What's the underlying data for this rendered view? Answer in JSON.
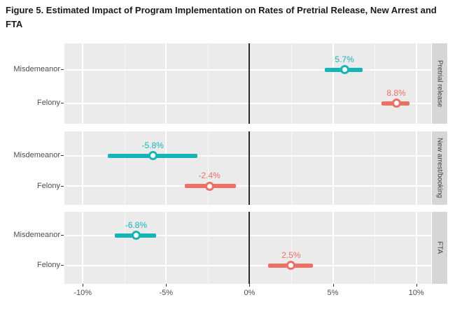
{
  "title": "Figure 5. Estimated Impact of Program Implementation on Rates of Pretrial Release, New Arrest and FTA",
  "colors": {
    "misdemeanor": "#14b4b7",
    "felony": "#ee6f64",
    "panel_bg": "#ebebeb",
    "strip_bg": "#d6d6d6",
    "grid_major": "#ffffff",
    "grid_minor": "#f7f7f7",
    "zero_line": "#2b2b2b",
    "axis_text": "#4d4d4d",
    "strip_text": "#3f3f3f"
  },
  "chart_data": {
    "type": "scatter",
    "subtype": "dot-and-whisker (point estimates with confidence intervals), faceted",
    "x_axis": {
      "unit": "%",
      "ticks": [
        -10,
        -5,
        0,
        5,
        10
      ],
      "tick_labels": [
        "-10%",
        "-5%",
        "0%",
        "5%",
        "10%"
      ],
      "minor_ticks": [
        -7.5,
        -2.5,
        2.5,
        7.5
      ],
      "range": [
        -11.1,
        10.9
      ]
    },
    "y_categories": [
      "Misdemeanor",
      "Felony"
    ],
    "zero_reference_line": 0,
    "grid": true,
    "legend": false,
    "facets": [
      {
        "label": "Pretrial release",
        "rows": [
          {
            "category": "Misdemeanor",
            "series": "misdemeanor",
            "estimate": 5.7,
            "ci_low": 4.5,
            "ci_high": 6.8,
            "label": "5.7%"
          },
          {
            "category": "Felony",
            "series": "felony",
            "estimate": 8.8,
            "ci_low": 7.9,
            "ci_high": 9.6,
            "label": "8.8%"
          }
        ]
      },
      {
        "label": "New arrest/booking",
        "rows": [
          {
            "category": "Misdemeanor",
            "series": "misdemeanor",
            "estimate": -5.8,
            "ci_low": -8.5,
            "ci_high": -3.1,
            "label": "-5.8%"
          },
          {
            "category": "Felony",
            "series": "felony",
            "estimate": -2.4,
            "ci_low": -3.9,
            "ci_high": -0.8,
            "label": "-2.4%"
          }
        ]
      },
      {
        "label": "FTA",
        "rows": [
          {
            "category": "Misdemeanor",
            "series": "misdemeanor",
            "estimate": -6.8,
            "ci_low": -8.1,
            "ci_high": -5.6,
            "label": "-6.8%"
          },
          {
            "category": "Felony",
            "series": "felony",
            "estimate": 2.5,
            "ci_low": 1.1,
            "ci_high": 3.8,
            "label": "2.5%"
          }
        ]
      }
    ]
  }
}
